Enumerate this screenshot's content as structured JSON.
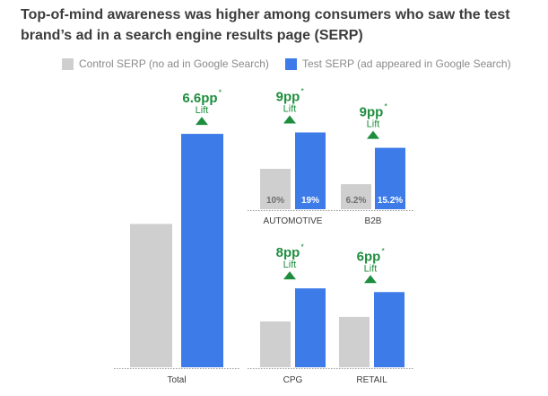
{
  "title": "Top-of-mind awareness was higher among  consumers who saw the test brand’s ad in a search engine results page (SERP)",
  "legend": [
    {
      "label": "Control SERP (no ad in Google Search)",
      "color": "#cfcfcf"
    },
    {
      "label": "Test SERP (ad appeared in Google Search)",
      "color": "#3d7be8"
    }
  ],
  "colors": {
    "control": "#cfcfcf",
    "test": "#3d7be8",
    "lift": "#1e8e3e",
    "axis": "#9a9a9a",
    "text": "#3c3c3c"
  },
  "chart_data": [
    {
      "type": "bar",
      "category": "Total",
      "series": [
        {
          "name": "Control SERP (no ad in Google Search)",
          "value": 10.5
        },
        {
          "name": "Test SERP (ad appeared in Google Search)",
          "value": 17.1
        }
      ],
      "value_labels": [
        "",
        ""
      ],
      "lift": {
        "value": "6.6pp",
        "note": "*",
        "label": "Lift"
      }
    },
    {
      "type": "bar",
      "category": "AUTOMOTIVE",
      "series": [
        {
          "name": "Control SERP (no ad in Google Search)",
          "value": 10
        },
        {
          "name": "Test SERP (ad appeared in Google Search)",
          "value": 19
        }
      ],
      "value_labels": [
        "10%",
        "19%"
      ],
      "lift": {
        "value": "9pp",
        "note": "*",
        "label": "Lift"
      }
    },
    {
      "type": "bar",
      "category": "B2B",
      "series": [
        {
          "name": "Control SERP (no ad in Google Search)",
          "value": 6.2
        },
        {
          "name": "Test SERP (ad appeared in Google Search)",
          "value": 15.2
        }
      ],
      "value_labels": [
        "6.2%",
        "15.2%"
      ],
      "lift": {
        "value": "9pp",
        "note": "*",
        "label": "Lift"
      }
    },
    {
      "type": "bar",
      "category": "CPG",
      "series": [
        {
          "name": "Control SERP (no ad in Google Search)",
          "value": 11.1
        },
        {
          "name": "Test SERP (ad appeared in Google Search)",
          "value": 19.1
        }
      ],
      "value_labels": [
        "",
        ""
      ],
      "lift": {
        "value": "8pp",
        "note": "*",
        "label": "Lift"
      }
    },
    {
      "type": "bar",
      "category": "RETAIL",
      "series": [
        {
          "name": "Control SERP (no ad in Google Search)",
          "value": 12.2
        },
        {
          "name": "Test SERP (ad appeared in Google Search)",
          "value": 18.2
        }
      ],
      "value_labels": [
        "",
        ""
      ],
      "lift": {
        "value": "6pp",
        "note": "*",
        "label": "Lift"
      }
    }
  ]
}
